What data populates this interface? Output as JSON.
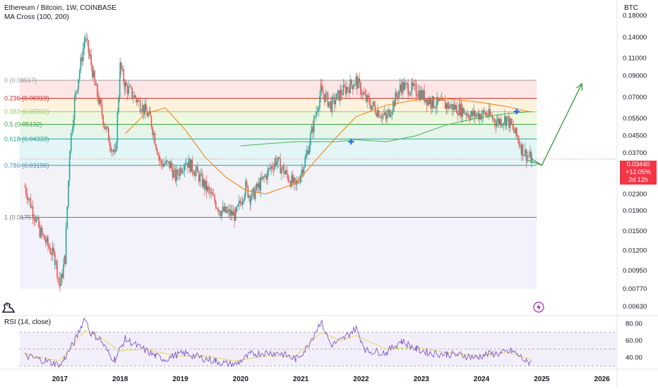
{
  "header": {
    "title": "Ethereum / Bitcoin, 1W, COINBASE",
    "indicator": "MA Cross (100, 200)",
    "currency": "BTC",
    "rsi_label": "RSI (14, close)"
  },
  "price_badge": {
    "price": "0.03440",
    "change": "+12.05%",
    "countdown": "2d 12h",
    "color": "#f23645"
  },
  "colors": {
    "up": "#26a69a",
    "down": "#ef5350",
    "ma_fast": "#f57c00",
    "ma_slow": "#4caf50",
    "rsi_line": "#7e57c2",
    "rsi_ma": "#e6d96a",
    "arrow": "#43a047",
    "cross_marker": "#2962ff"
  },
  "chart_data": [
    {
      "type": "candlestick",
      "title": "Ethereum / Bitcoin, 1W, COINBASE",
      "y_scale": "log",
      "ylim": [
        0.0058,
        0.215
      ],
      "y_ticks": [
        "0.18000",
        "0.14000",
        "0.11000",
        "0.09000",
        "0.07000",
        "0.05500",
        "0.04500",
        "0.03700",
        "0.02300",
        "0.01900",
        "0.01500",
        "0.01200",
        "0.00950",
        "0.00770",
        "0.00630"
      ],
      "x_ticks": [
        "2017",
        "2018",
        "2019",
        "2020",
        "2021",
        "2022",
        "2023",
        "2024",
        "2025",
        "2026"
      ],
      "xlim": [
        "2016-05",
        "2026-04"
      ],
      "fib_levels": [
        {
          "label": "0 (0.08517)",
          "value": 0.08517,
          "line": "#9e9e9e",
          "fill": "#fde6e6"
        },
        {
          "label": "0.236 (0.06919)",
          "value": 0.06919,
          "line": "#c62828",
          "fill": "#fff3df"
        },
        {
          "label": "0.382 (0.05931)",
          "value": 0.05931,
          "line": "#9ccc65",
          "fill": "#eef7e0"
        },
        {
          "label": "0.5 (0.05132)",
          "value": 0.05132,
          "line": "#43a047",
          "fill": "#e6f4ea"
        },
        {
          "label": "0.618 (0.04333)",
          "value": 0.04333,
          "line": "#26a69a",
          "fill": "#e3f5f6"
        },
        {
          "label": "0.786 (0.03196)",
          "value": 0.03196,
          "line": "#4a90c0",
          "fill": "#f2f2f7"
        },
        {
          "label": "1 (0.01757)",
          "value": 0.01757,
          "line": "#777777",
          "fill": "#eeeeff"
        }
      ],
      "fib_extent": [
        "2016-05",
        "2024-12"
      ],
      "price_path": [
        [
          "2016-06",
          0.025
        ],
        [
          "2016-09",
          0.015
        ],
        [
          "2016-12",
          0.011
        ],
        [
          "2017-01",
          0.008
        ],
        [
          "2017-02",
          0.011
        ],
        [
          "2017-03",
          0.04
        ],
        [
          "2017-04",
          0.07
        ],
        [
          "2017-06",
          0.14
        ],
        [
          "2017-07",
          0.11
        ],
        [
          "2017-08",
          0.08
        ],
        [
          "2017-10",
          0.05
        ],
        [
          "2017-12",
          0.035
        ],
        [
          "2018-01",
          0.1
        ],
        [
          "2018-02",
          0.08
        ],
        [
          "2018-05",
          0.065
        ],
        [
          "2018-07",
          0.055
        ],
        [
          "2018-09",
          0.033
        ],
        [
          "2018-11",
          0.032
        ],
        [
          "2018-12",
          0.028
        ],
        [
          "2019-02",
          0.034
        ],
        [
          "2019-04",
          0.03
        ],
        [
          "2019-06",
          0.025
        ],
        [
          "2019-09",
          0.019
        ],
        [
          "2019-12",
          0.018
        ],
        [
          "2020-02",
          0.025
        ],
        [
          "2020-03",
          0.022
        ],
        [
          "2020-05",
          0.026
        ],
        [
          "2020-08",
          0.034
        ],
        [
          "2020-10",
          0.029
        ],
        [
          "2020-12",
          0.025
        ],
        [
          "2021-02",
          0.035
        ],
        [
          "2021-05",
          0.076
        ],
        [
          "2021-07",
          0.064
        ],
        [
          "2021-09",
          0.074
        ],
        [
          "2021-12",
          0.085
        ],
        [
          "2022-02",
          0.068
        ],
        [
          "2022-06",
          0.055
        ],
        [
          "2022-09",
          0.08
        ],
        [
          "2022-12",
          0.076
        ],
        [
          "2023-03",
          0.066
        ],
        [
          "2023-06",
          0.064
        ],
        [
          "2023-09",
          0.061
        ],
        [
          "2023-11",
          0.057
        ],
        [
          "2024-02",
          0.058
        ],
        [
          "2024-04",
          0.053
        ],
        [
          "2024-06",
          0.055
        ],
        [
          "2024-08",
          0.045
        ],
        [
          "2024-09",
          0.039
        ],
        [
          "2024-10",
          0.036
        ],
        [
          "2024-11",
          0.0344
        ]
      ],
      "ma_fast": [
        [
          "2018-02",
          0.046
        ],
        [
          "2018-06",
          0.058
        ],
        [
          "2018-10",
          0.062
        ],
        [
          "2019-02",
          0.048
        ],
        [
          "2019-06",
          0.035
        ],
        [
          "2019-10",
          0.028
        ],
        [
          "2020-02",
          0.024
        ],
        [
          "2020-06",
          0.023
        ],
        [
          "2020-12",
          0.026
        ],
        [
          "2021-04",
          0.034
        ],
        [
          "2021-08",
          0.044
        ],
        [
          "2021-12",
          0.056
        ],
        [
          "2022-06",
          0.064
        ],
        [
          "2022-12",
          0.068
        ],
        [
          "2023-06",
          0.069
        ],
        [
          "2024-01",
          0.066
        ],
        [
          "2024-06",
          0.063
        ],
        [
          "2024-11",
          0.059
        ]
      ],
      "ma_slow": [
        [
          "2020-01",
          0.04
        ],
        [
          "2020-06",
          0.041
        ],
        [
          "2020-12",
          0.042
        ],
        [
          "2021-04",
          0.042
        ],
        [
          "2021-08",
          0.042
        ],
        [
          "2021-12",
          0.043
        ],
        [
          "2022-06",
          0.042
        ],
        [
          "2022-12",
          0.045
        ],
        [
          "2023-06",
          0.051
        ],
        [
          "2023-12",
          0.055
        ],
        [
          "2024-06",
          0.058
        ],
        [
          "2024-11",
          0.0595
        ]
      ],
      "cross_markers": [
        [
          "2021-11",
          0.042
        ],
        [
          "2024-08",
          0.0595
        ]
      ],
      "projection": [
        [
          "2024-11",
          0.0344
        ],
        [
          "2025-01",
          0.032
        ],
        [
          "2025-09",
          0.082
        ]
      ],
      "current_price": 0.0344
    },
    {
      "type": "line",
      "title": "RSI (14, close)",
      "ylim": [
        28,
        88
      ],
      "y_ticks": [
        "80.00",
        "60.00",
        "40.00"
      ],
      "band_levels": [
        70,
        50,
        30
      ],
      "series": [
        {
          "points": [
            [
              "2016-06",
              42
            ],
            [
              "2016-09",
              38
            ],
            [
              "2016-12",
              33
            ],
            [
              "2017-01",
              30
            ],
            [
              "2017-02",
              40
            ],
            [
              "2017-04",
              60
            ],
            [
              "2017-06",
              88
            ],
            [
              "2017-07",
              70
            ],
            [
              "2017-09",
              62
            ],
            [
              "2017-11",
              42
            ],
            [
              "2017-12",
              38
            ],
            [
              "2018-02",
              62
            ],
            [
              "2018-05",
              52
            ],
            [
              "2018-08",
              42
            ],
            [
              "2018-10",
              38
            ],
            [
              "2018-12",
              43
            ],
            [
              "2019-02",
              45
            ],
            [
              "2019-05",
              40
            ],
            [
              "2019-08",
              36
            ],
            [
              "2019-10",
              33
            ],
            [
              "2019-12",
              32
            ],
            [
              "2020-03",
              44
            ],
            [
              "2020-06",
              46
            ],
            [
              "2020-09",
              45
            ],
            [
              "2020-12",
              38
            ],
            [
              "2021-02",
              50
            ],
            [
              "2021-05",
              83
            ],
            [
              "2021-07",
              55
            ],
            [
              "2021-09",
              60
            ],
            [
              "2021-12",
              75
            ],
            [
              "2022-02",
              48
            ],
            [
              "2022-06",
              46
            ],
            [
              "2022-09",
              60
            ],
            [
              "2022-12",
              50
            ],
            [
              "2023-03",
              45
            ],
            [
              "2023-06",
              44
            ],
            [
              "2023-09",
              43
            ],
            [
              "2023-12",
              40
            ],
            [
              "2024-02",
              44
            ],
            [
              "2024-05",
              45
            ],
            [
              "2024-07",
              48
            ],
            [
              "2024-09",
              40
            ],
            [
              "2024-10",
              34
            ],
            [
              "2024-11",
              36
            ]
          ]
        },
        {
          "points": [
            [
              "2016-06",
              44
            ],
            [
              "2017-01",
              36
            ],
            [
              "2017-06",
              72
            ],
            [
              "2017-09",
              64
            ],
            [
              "2018-01",
              48
            ],
            [
              "2018-06",
              50
            ],
            [
              "2018-12",
              42
            ],
            [
              "2019-06",
              42
            ],
            [
              "2019-12",
              36
            ],
            [
              "2020-06",
              42
            ],
            [
              "2020-12",
              42
            ],
            [
              "2021-05",
              70
            ],
            [
              "2021-09",
              60
            ],
            [
              "2021-12",
              66
            ],
            [
              "2022-06",
              50
            ],
            [
              "2022-12",
              52
            ],
            [
              "2023-06",
              46
            ],
            [
              "2023-12",
              42
            ],
            [
              "2024-06",
              46
            ],
            [
              "2024-11",
              38
            ]
          ]
        }
      ]
    }
  ]
}
